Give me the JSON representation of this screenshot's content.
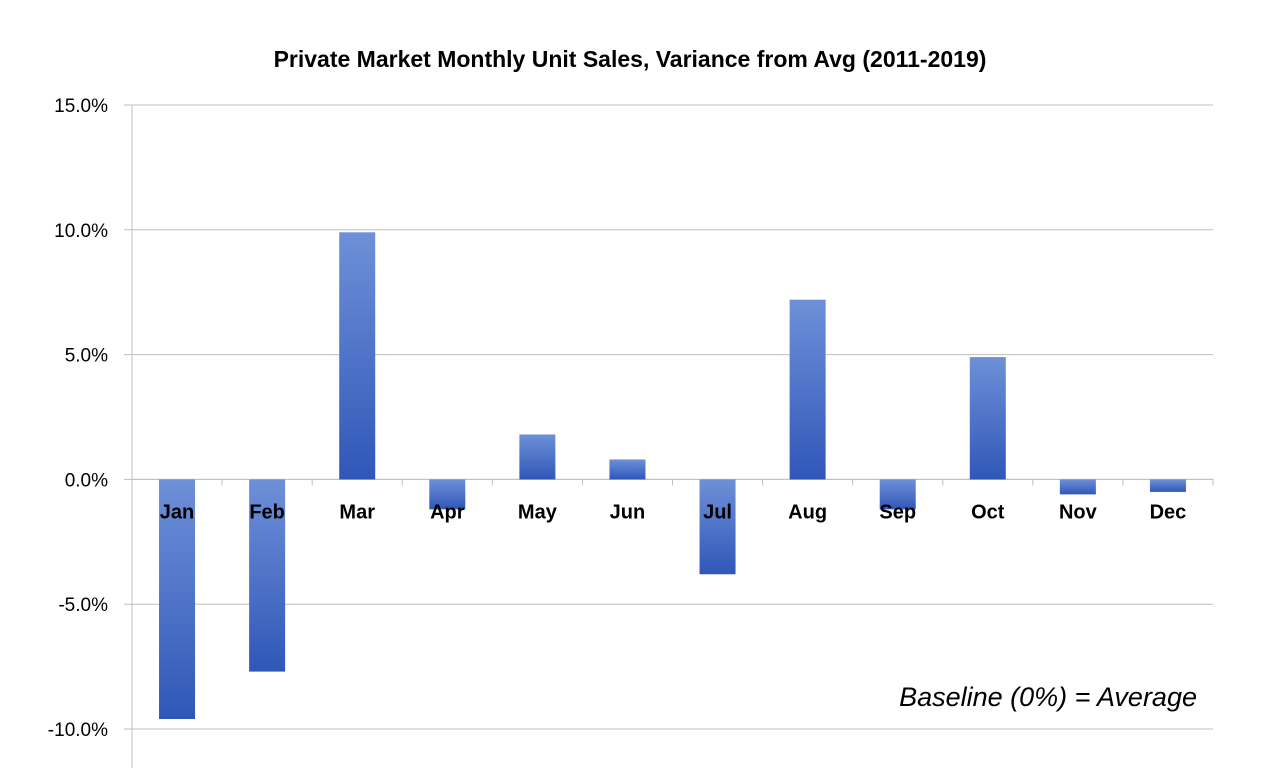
{
  "chart_data": {
    "type": "bar",
    "title": "Private Market Monthly Unit Sales, Variance from Avg (2011-2019)",
    "categories": [
      "Jan",
      "Feb",
      "Mar",
      "Apr",
      "May",
      "Jun",
      "Jul",
      "Aug",
      "Sep",
      "Oct",
      "Nov",
      "Dec"
    ],
    "values": [
      -9.6,
      -7.7,
      9.9,
      -1.2,
      1.8,
      0.8,
      -3.8,
      7.2,
      -1.2,
      4.9,
      -0.6,
      -0.5
    ],
    "ylim": [
      -10,
      15
    ],
    "yticks": [
      15,
      10,
      5,
      0,
      -5,
      -10
    ],
    "ytick_labels": [
      "15.0%",
      "10.0%",
      "5.0%",
      "0.0%",
      "-5.0%",
      "-10.0%"
    ],
    "xlabel": "",
    "ylabel": "",
    "grid": true,
    "legend": "none",
    "annotation": "Baseline (0%) = Average",
    "bar_color_light": "#6E90D8",
    "bar_color_dark": "#3057B8",
    "gridline_color": "#BFBFBF"
  }
}
